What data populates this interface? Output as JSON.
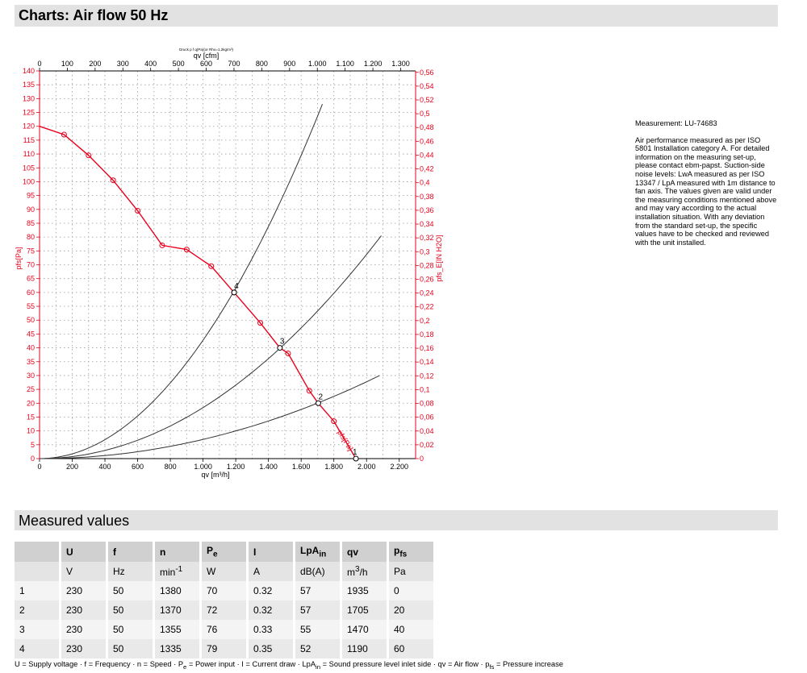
{
  "header": {
    "title": "Charts: Air flow 50 Hz"
  },
  "chart_data": {
    "type": "line",
    "small_title": "Druck p f q(Pa)(or Rho=1,2kg/m³)",
    "x_top_label": "qv [cfm]",
    "x_bottom_label": "qv [m³/h]",
    "y_left_label": "pfs[Pa]",
    "y_right_label": "pfs_E[IN H2O]",
    "x_bottom_ticks": [
      "0",
      "200",
      "400",
      "600",
      "800",
      "1.000",
      "1.200",
      "1.400",
      "1.600",
      "1.800",
      "2.000",
      "2.200"
    ],
    "x_top_ticks": [
      "0",
      "100",
      "200",
      "300",
      "400",
      "500",
      "600",
      "700",
      "800",
      "900",
      "1.000",
      "1.100",
      "1.200",
      "1.300"
    ],
    "y_left_ticks": [
      "0",
      "5",
      "10",
      "15",
      "20",
      "25",
      "30",
      "35",
      "40",
      "45",
      "50",
      "55",
      "60",
      "65",
      "70",
      "75",
      "80",
      "85",
      "90",
      "95",
      "100",
      "105",
      "110",
      "115",
      "120",
      "125",
      "130",
      "135",
      "140"
    ],
    "y_right_ticks": [
      "0",
      "0,02",
      "0,04",
      "0,06",
      "0,08",
      "0,1",
      "0,12",
      "0,14",
      "0,16",
      "0,18",
      "0,2",
      "0,22",
      "0,24",
      "0,26",
      "0,28",
      "0,3",
      "0,32",
      "0,34",
      "0,36",
      "0,38",
      "0,4",
      "0,42",
      "0,44",
      "0,46",
      "0,48",
      "0,5",
      "0,52",
      "0,54",
      "0,56"
    ],
    "xlim": [
      0,
      2300
    ],
    "ylim": [
      0,
      140
    ],
    "grid": true,
    "series": [
      {
        "name": "pfs[Pa]",
        "color": "#e8001c",
        "points": [
          [
            0,
            120
          ],
          [
            150,
            117
          ],
          [
            300,
            109.5
          ],
          [
            450,
            100.5
          ],
          [
            600,
            89.5
          ],
          [
            750,
            77
          ],
          [
            900,
            75.5
          ],
          [
            1050,
            69.5
          ],
          [
            1190,
            60
          ],
          [
            1350,
            49
          ],
          [
            1470,
            40
          ],
          [
            1520,
            38
          ],
          [
            1650,
            24.5
          ],
          [
            1705,
            20
          ],
          [
            1800,
            13.5
          ],
          [
            1935,
            0
          ]
        ],
        "markers": [
          [
            150,
            117
          ],
          [
            300,
            109.5
          ],
          [
            450,
            100.5
          ],
          [
            600,
            89.5
          ],
          [
            750,
            77
          ],
          [
            900,
            75.5
          ],
          [
            1050,
            69.5
          ],
          [
            1190,
            60
          ],
          [
            1350,
            49
          ],
          [
            1520,
            38
          ],
          [
            1650,
            24.5
          ],
          [
            1800,
            13.5
          ]
        ]
      }
    ],
    "system_curves": [
      {
        "end": [
          1730,
          128
        ]
      },
      {
        "end": [
          2090,
          80.5
        ]
      },
      {
        "end": [
          2080,
          30
        ]
      }
    ],
    "operating_points": [
      {
        "label": "1",
        "x": 1935,
        "y": 0
      },
      {
        "label": "2",
        "x": 1705,
        "y": 20
      },
      {
        "label": "3",
        "x": 1470,
        "y": 40
      },
      {
        "label": "4",
        "x": 1190,
        "y": 60
      }
    ]
  },
  "info": {
    "measurement": "Measurement: LU-74683",
    "description": "Air performance measured as per ISO 5801 Installation category A. For detailed information on the measuring set-up, please contact ebm-papst. Suction-side noise levels: LwA measured as per ISO 13347 / LpA measured with 1m distance to fan axis. The values given are valid under the measuring conditions mentioned above and may vary according to the actual installation situation. With any deviation from the standard set-up, the specific values have to be checked and reviewed with the unit installed."
  },
  "measured": {
    "title": "Measured values",
    "headers": [
      {
        "main": "U",
        "sub": ""
      },
      {
        "main": "f",
        "sub": ""
      },
      {
        "main": "n",
        "sub": ""
      },
      {
        "main": "P",
        "sub": "e"
      },
      {
        "main": "I",
        "sub": ""
      },
      {
        "main": "LpA",
        "sub": "in"
      },
      {
        "main": "qv",
        "sub": ""
      },
      {
        "main": "p",
        "sub": "fs"
      }
    ],
    "units": [
      "V",
      "Hz",
      "min-1",
      "W",
      "A",
      "dB(A)",
      "m3/h",
      "Pa"
    ],
    "rows": [
      [
        "1",
        "230",
        "50",
        "1380",
        "70",
        "0.32",
        "57",
        "1935",
        "0"
      ],
      [
        "2",
        "230",
        "50",
        "1370",
        "72",
        "0.32",
        "57",
        "1705",
        "20"
      ],
      [
        "3",
        "230",
        "50",
        "1355",
        "76",
        "0.33",
        "55",
        "1470",
        "40"
      ],
      [
        "4",
        "230",
        "50",
        "1335",
        "79",
        "0.35",
        "52",
        "1190",
        "60"
      ]
    ]
  },
  "footnote": "U = Supply voltage · f = Frequency · n = Speed · Pe = Power input · I = Current draw · LpAin = Sound pressure level inlet side · qv = Air flow · pfs = Pressure increase"
}
